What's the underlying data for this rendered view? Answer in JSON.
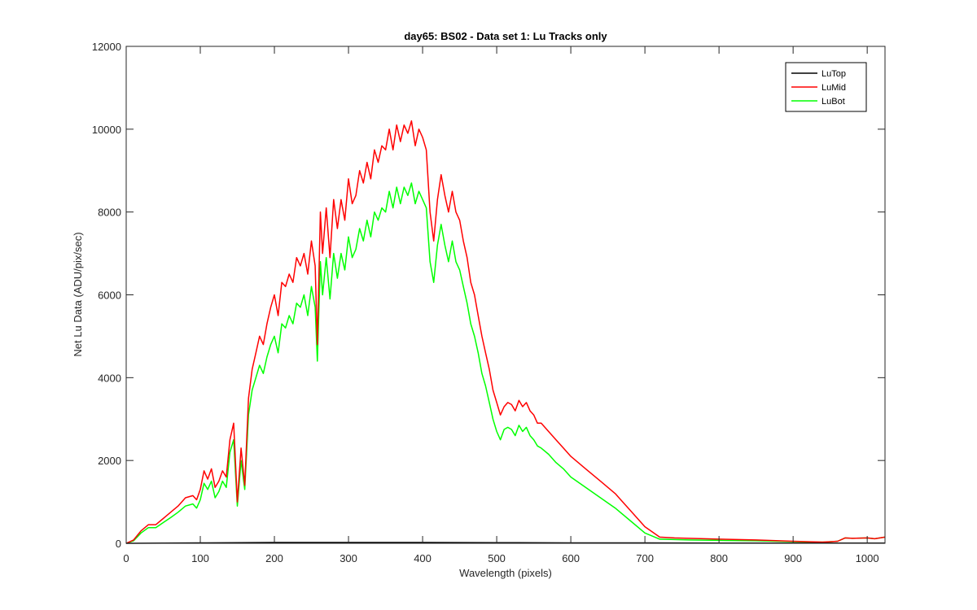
{
  "chart_data": {
    "type": "line",
    "title": "day65: BS02 - Data set 1: Lu Tracks only",
    "xlabel": "Wavelength (pixels)",
    "ylabel": "Net Lu Data (ADU/pix/sec)",
    "xlim": [
      0,
      1024
    ],
    "ylim": [
      0,
      12000
    ],
    "xticks": [
      0,
      100,
      200,
      300,
      400,
      500,
      600,
      700,
      800,
      900,
      1000
    ],
    "yticks": [
      0,
      2000,
      4000,
      6000,
      8000,
      10000,
      12000
    ],
    "xtick_labels": [
      "0",
      "100",
      "200",
      "300",
      "400",
      "500",
      "600",
      "700",
      "800",
      "900",
      "1000"
    ],
    "ytick_labels": [
      "0",
      "2000",
      "4000",
      "6000",
      "8000",
      "10000",
      "12000"
    ],
    "grid": false,
    "legend_position": "top-right",
    "series": [
      {
        "name": "LuTop",
        "color": "#000000",
        "x": [
          0,
          100,
          200,
          300,
          400,
          500,
          600,
          700,
          800,
          900,
          1024
        ],
        "y": [
          0,
          10,
          20,
          20,
          20,
          15,
          10,
          10,
          5,
          5,
          5
        ]
      },
      {
        "name": "LuMid",
        "color": "#ff0000",
        "x": [
          0,
          10,
          20,
          30,
          40,
          50,
          60,
          70,
          80,
          90,
          95,
          100,
          105,
          110,
          115,
          120,
          125,
          130,
          135,
          140,
          145,
          150,
          155,
          160,
          165,
          170,
          175,
          180,
          185,
          190,
          195,
          200,
          205,
          210,
          215,
          220,
          225,
          230,
          235,
          240,
          245,
          250,
          255,
          258,
          262,
          265,
          270,
          275,
          280,
          285,
          290,
          295,
          300,
          305,
          310,
          315,
          320,
          325,
          330,
          335,
          340,
          345,
          350,
          355,
          360,
          365,
          370,
          375,
          380,
          385,
          390,
          395,
          400,
          405,
          410,
          415,
          420,
          425,
          430,
          435,
          440,
          445,
          450,
          455,
          460,
          465,
          470,
          475,
          480,
          485,
          490,
          495,
          500,
          505,
          510,
          515,
          520,
          525,
          530,
          535,
          540,
          545,
          550,
          555,
          560,
          570,
          580,
          590,
          600,
          620,
          640,
          660,
          680,
          700,
          720,
          740,
          760,
          800,
          850,
          900,
          940,
          960,
          970,
          980,
          1000,
          1010,
          1024
        ],
        "y": [
          0,
          80,
          300,
          450,
          450,
          600,
          750,
          900,
          1100,
          1150,
          1050,
          1300,
          1750,
          1550,
          1800,
          1350,
          1500,
          1750,
          1600,
          2500,
          2900,
          1000,
          2300,
          1400,
          3500,
          4200,
          4600,
          5000,
          4800,
          5300,
          5700,
          6000,
          5500,
          6300,
          6200,
          6500,
          6300,
          6900,
          6700,
          7000,
          6500,
          7300,
          6700,
          4800,
          8000,
          7000,
          8100,
          6900,
          8300,
          7600,
          8300,
          7800,
          8800,
          8200,
          8400,
          9000,
          8700,
          9200,
          8800,
          9500,
          9200,
          9600,
          9500,
          10000,
          9500,
          10100,
          9700,
          10100,
          9900,
          10200,
          9600,
          10000,
          9800,
          9500,
          8000,
          7300,
          8300,
          8900,
          8400,
          8000,
          8500,
          8000,
          7800,
          7300,
          6900,
          6300,
          6000,
          5500,
          5000,
          4600,
          4200,
          3700,
          3400,
          3100,
          3300,
          3400,
          3350,
          3200,
          3450,
          3300,
          3400,
          3200,
          3100,
          2900,
          2900,
          2700,
          2500,
          2300,
          2100,
          1800,
          1500,
          1200,
          800,
          400,
          150,
          130,
          120,
          100,
          80,
          50,
          30,
          50,
          130,
          120,
          130,
          110,
          150
        ]
      },
      {
        "name": "LuBot",
        "color": "#00ff00",
        "x": [
          0,
          10,
          20,
          30,
          40,
          50,
          60,
          70,
          80,
          90,
          95,
          100,
          105,
          110,
          115,
          120,
          125,
          130,
          135,
          140,
          145,
          150,
          155,
          160,
          165,
          170,
          175,
          180,
          185,
          190,
          195,
          200,
          205,
          210,
          215,
          220,
          225,
          230,
          235,
          240,
          245,
          250,
          255,
          258,
          262,
          265,
          270,
          275,
          280,
          285,
          290,
          295,
          300,
          305,
          310,
          315,
          320,
          325,
          330,
          335,
          340,
          345,
          350,
          355,
          360,
          365,
          370,
          375,
          380,
          385,
          390,
          395,
          400,
          405,
          410,
          415,
          420,
          425,
          430,
          435,
          440,
          445,
          450,
          455,
          460,
          465,
          470,
          475,
          480,
          485,
          490,
          495,
          500,
          505,
          510,
          515,
          520,
          525,
          530,
          535,
          540,
          545,
          550,
          555,
          560,
          570,
          580,
          590,
          600,
          620,
          640,
          660,
          680,
          700,
          720,
          740,
          760,
          800,
          850,
          900,
          940,
          960,
          970,
          980,
          1000,
          1010,
          1024
        ],
        "y": [
          0,
          60,
          250,
          380,
          380,
          500,
          620,
          750,
          900,
          950,
          850,
          1050,
          1450,
          1300,
          1500,
          1100,
          1250,
          1500,
          1350,
          2200,
          2500,
          900,
          2000,
          1300,
          3100,
          3700,
          4000,
          4300,
          4100,
          4500,
          4800,
          5000,
          4600,
          5300,
          5200,
          5500,
          5300,
          5800,
          5700,
          6000,
          5500,
          6200,
          5700,
          4400,
          6800,
          6000,
          6900,
          5900,
          7000,
          6400,
          7000,
          6600,
          7400,
          6900,
          7100,
          7600,
          7300,
          7800,
          7400,
          8000,
          7800,
          8100,
          8000,
          8500,
          8100,
          8600,
          8200,
          8600,
          8400,
          8700,
          8200,
          8500,
          8300,
          8100,
          6800,
          6300,
          7200,
          7700,
          7200,
          6800,
          7300,
          6800,
          6600,
          6200,
          5800,
          5300,
          5000,
          4600,
          4100,
          3800,
          3400,
          3000,
          2700,
          2500,
          2750,
          2800,
          2750,
          2600,
          2850,
          2700,
          2800,
          2600,
          2500,
          2350,
          2300,
          2150,
          1950,
          1800,
          1600,
          1350,
          1100,
          850,
          550,
          250,
          100,
          90,
          80,
          70,
          60,
          40,
          30,
          50,
          130,
          120,
          130,
          110,
          150
        ]
      }
    ]
  }
}
